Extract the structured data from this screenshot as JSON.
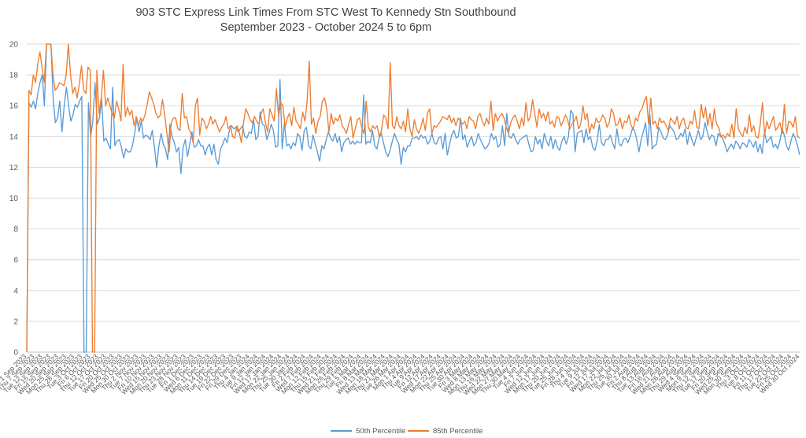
{
  "chart_data": {
    "type": "line",
    "title": "903 STC Express Link Times From STC West To Kennedy Stn Southbound",
    "subtitle": "September 2023 - October 2024 5 to 6pm",
    "xlabel": "",
    "ylabel": "",
    "ylim": [
      0,
      20
    ],
    "yticks": [
      0,
      2,
      4,
      6,
      8,
      10,
      12,
      14,
      16,
      18,
      20
    ],
    "grid": true,
    "legend": "bottom",
    "colors": {
      "p50": "#5b9bd5",
      "p85": "#ed7d31",
      "grid": "#d9d9d9",
      "axis": "#bfbfbf"
    },
    "x_tick_labels": [
      "Fri 1 Sep 2023",
      "Thu 7 Sep 2023",
      "Tue 12 Sep 2023",
      "Fri 15 Sep 2023",
      "Wed 20 Sep 2023",
      "Mon 25 Sep 2023",
      "Thu 28 Sep 2023",
      "Tue 3 Oct 2023",
      "Fri 6 Oct 2023",
      "Thu 12 Oct 2023",
      "Tue 17 Oct 2023",
      "Fri 20 Oct 2023",
      "Wed 25 Oct 2023",
      "Mon 30 Oct 2023",
      "Thu 2 Nov 2023",
      "Tue 7 Nov 2023",
      "Fri 10 Nov 2023",
      "Wed 15 Nov 2023",
      "Mon 20 Nov 2023",
      "Thu 23 Nov 2023",
      "Tue 28 Nov 2023",
      "Fri 1 Dec 2023",
      "Wed 6 Dec 2023",
      "Mon 11 Dec 2023",
      "Thu 14 Dec 2023",
      "Tue 19 Dec 2023",
      "Fri 22 Dec 2023",
      "Fri 29 Dec 2023",
      "Thu 4 Jan 2024",
      "Tue 9 Jan 2024",
      "Fri 12 Jan 2024",
      "Wed 17 Jan 2024",
      "Mon 22 Jan 2024",
      "Thu 25 Jan 2024",
      "Tue 30 Jan 2024",
      "Fri 2 Feb 2024",
      "Wed 7 Feb 2024",
      "Mon 12 Feb 2024",
      "Thu 15 Feb 2024",
      "Wed 21 Feb 2024",
      "Mon 26 Feb 2024",
      "Thu 29 Feb 2024",
      "Tue 5 Mar 2024",
      "Fri 8 Mar 2024",
      "Wed 13 Mar 2024",
      "Mon 18 Mar 2024",
      "Thu 21 Mar 2024",
      "Tue 26 Mar 2024",
      "Mon 1 Apr 2024",
      "Thu 4 Apr 2024",
      "Tue 9 Apr 2024",
      "Fri 12 Apr 2024",
      "Wed 17 Apr 2024",
      "Mon 22 Apr 2024",
      "Thu 25 Apr 2024",
      "Tue 30 Apr 2024",
      "Fri 3 May 2024",
      "Wed 8 May 2024",
      "Mon 13 May 2024",
      "Thu 16 May 2024",
      "Wed 22 May 2024",
      "Mon 27 May 2024",
      "Thu 30 May 2024",
      "Tue 4 Jun 2024",
      "Fri 7 Jun 2024",
      "Wed 12 Jun 2024",
      "Mon 17 Jun 2024",
      "Thu 20 Jun 2024",
      "Tue 25 Jun 2024",
      "Fri 28 Jun 2024",
      "Thu 4 Jul 2024",
      "Tue 9 Jul 2024",
      "Fri 12 Jul 2024",
      "Wed 17 Jul 2024",
      "Mon 22 Jul 2024",
      "Thu 25 Jul 2024",
      "Tue 30 Jul 2024",
      "Fri 2 Aug 2024",
      "Thu 8 Aug 2024",
      "Tue 13 Aug 2024",
      "Fri 16 Aug 2024",
      "Wed 21 Aug 2024",
      "Mon 26 Aug 2024",
      "Thu 29 Aug 2024",
      "Wed 4 Sep 2024",
      "Mon 9 Sep 2024",
      "Thu 12 Sep 2024",
      "Tue 17 Sep 2024",
      "Fri 20 Sep 2024",
      "Wed 25 Sep 2024",
      "Mon 30 Sep 2024",
      "Thu 3 Oct 2024",
      "Tue 8 Oct 2024",
      "Fri 11 Oct 2024",
      "Thu 17 Oct 2024",
      "Tue 22 Oct 2024",
      "Fri 25 Oct 2024",
      "Wed 30 Oct 2024"
    ],
    "series": [
      {
        "name": "50th Percentile",
        "values": [
          0,
          16.2,
          15.9,
          16.3,
          15.8,
          16.8,
          17.5,
          18.0,
          16.0,
          20,
          20,
          20,
          16.4,
          14.9,
          15.2,
          16.3,
          14.3,
          16.0,
          17.2,
          16.0,
          15.0,
          15.4,
          16.1,
          15.9,
          16.3,
          16.6,
          0,
          0,
          16.2,
          14.0,
          15.0,
          17.5,
          14.8,
          15.2,
          16.4,
          13.7,
          13.9,
          13.5,
          13.2,
          17.2,
          13.4,
          13.7,
          13.8,
          13.3,
          12.6,
          13.2,
          13.0,
          13.0,
          13.4,
          14.2,
          15.2,
          14.3,
          15.0,
          13.9,
          14.1,
          14.0,
          13.8,
          14.4,
          13.3,
          12.0,
          13.4,
          14.2,
          13.5,
          13.2,
          12.5,
          14.8,
          14.0,
          13.6,
          13.0,
          13.3,
          11.6,
          13.3,
          13.8,
          12.7,
          13.5,
          14.3,
          13.3,
          13.4,
          13.8,
          13.4,
          13.4,
          12.8,
          13.3,
          13.5,
          12.8,
          13.5,
          12.5,
          12.2,
          13.2,
          13.5,
          13.9,
          13.6,
          14.4,
          14.7,
          14.5,
          14.6,
          14.3,
          14.5,
          14.7,
          14.0,
          13.9,
          14.3,
          14.2,
          15.1,
          13.8,
          14.0,
          15.6,
          14.8,
          14.7,
          13.8,
          14.2,
          14.8,
          14.4,
          13.3,
          13.4,
          17.7,
          13.2,
          14.9,
          13.4,
          13.5,
          13.2,
          13.6,
          13.4,
          14.2,
          14.0,
          13.1,
          14.4,
          14.6,
          13.4,
          13.2,
          14.1,
          13.5,
          13.0,
          12.4,
          13.4,
          13.2,
          13.8,
          14.3,
          13.9,
          13.7,
          14.2,
          13.6,
          14.0,
          13.0,
          13.6,
          13.8,
          13.9,
          13.5,
          13.7,
          13.5,
          13.7,
          13.6,
          13.6,
          16.7,
          13.5,
          13.7,
          13.6,
          14.4,
          13.4,
          13.2,
          13.9,
          14.2,
          13.6,
          13.0,
          12.7,
          13.1,
          13.7,
          14.2,
          13.8,
          13.5,
          12.2,
          13.3,
          13.0,
          13.4,
          13.4,
          13.9,
          13.9,
          14.0,
          13.8,
          14.1,
          13.9,
          14.0,
          13.5,
          13.7,
          14.2,
          13.6,
          13.5,
          13.9,
          14.0,
          13.2,
          14.2,
          12.8,
          13.5,
          14.1,
          14.4,
          13.9,
          14.0,
          15.2,
          13.8,
          14.1,
          13.3,
          13.7,
          14.0,
          13.4,
          13.6,
          14.2,
          13.8,
          13.5,
          13.2,
          13.3,
          13.6,
          14.2,
          13.8,
          14.0,
          13.3,
          13.5,
          14.7,
          13.4,
          15.5,
          14.0,
          13.9,
          14.2,
          13.8,
          13.5,
          13.8,
          13.9,
          14.0,
          14.1,
          13.5,
          13.0,
          13.1,
          14.0,
          13.5,
          13.8,
          13.2,
          14.2,
          13.7,
          13.4,
          14.0,
          13.2,
          13.8,
          13.3,
          13.1,
          13.7,
          14.0,
          13.5,
          14.0,
          15.7,
          15.5,
          13.0,
          14.2,
          14.3,
          14.4,
          13.6,
          14.5,
          13.8,
          14.0,
          13.3,
          13.1,
          13.7,
          14.8,
          13.6,
          13.4,
          13.8,
          13.8,
          14.1,
          13.6,
          13.2,
          14.5,
          13.5,
          13.4,
          13.8,
          13.9,
          13.6,
          14.0,
          14.5,
          14.4,
          13.8,
          13.0,
          13.8,
          14.3,
          14.9,
          13.4,
          15.4,
          13.2,
          13.4,
          13.5,
          14.6,
          14.3,
          13.9,
          13.8,
          14.1,
          14.7,
          14.5,
          14.3,
          13.8,
          13.9,
          14.2,
          14.0,
          14.5,
          13.5,
          14.3,
          13.8,
          13.4,
          13.9,
          14.4,
          13.8,
          14.0,
          14.9,
          14.3,
          13.8,
          14.1,
          14.0,
          13.4,
          14.2,
          14.0,
          13.9,
          13.5,
          13.0,
          13.3,
          13.5,
          13.2,
          13.7,
          13.5,
          13.2,
          13.6,
          13.5,
          13.3,
          13.8,
          13.6,
          13.3,
          13.7,
          13.0,
          13.5,
          12.9,
          14.3,
          13.6,
          13.8,
          14.0,
          13.3,
          13.5,
          13.2,
          13.7,
          14.5,
          14.1,
          13.4,
          13.1,
          13.7,
          14.2,
          13.9,
          13.4,
          12.8
        ]
      },
      {
        "name": "85th Percentile",
        "values": [
          0,
          17.0,
          16.7,
          18.0,
          17.5,
          18.7,
          19.5,
          18.5,
          17.5,
          20,
          20,
          20,
          18.0,
          17.0,
          17.2,
          17.5,
          17.4,
          17.3,
          18.0,
          20.0,
          18.0,
          16.8,
          17.2,
          16.5,
          17.4,
          18.6,
          17.0,
          16.8,
          18.5,
          18.3,
          0,
          0,
          18.3,
          15.5,
          16.5,
          18.3,
          16.0,
          16.5,
          16.0,
          15.5,
          15.2,
          16.3,
          15.8,
          15.0,
          18.7,
          15.3,
          15.9,
          15.4,
          15.7,
          14.7,
          15.3,
          14.7,
          15.2,
          15.0,
          15.4,
          16.1,
          16.9,
          16.5,
          16.1,
          15.5,
          15.2,
          15.4,
          16.4,
          15.4,
          14.2,
          13.0,
          14.9,
          15.2,
          15.2,
          14.5,
          14.4,
          16.8,
          15.2,
          15.3,
          14.5,
          14.2,
          13.6,
          16.0,
          16.5,
          14.1,
          15.2,
          15.0,
          14.5,
          14.8,
          15.3,
          14.8,
          15.1,
          14.7,
          14.3,
          14.6,
          14.8,
          15.3,
          14.5,
          14.7,
          14.0,
          13.9,
          14.7,
          14.3,
          13.6,
          14.9,
          15.8,
          15.5,
          15.1,
          14.9,
          15.3,
          15.0,
          14.8,
          15.5,
          15.8,
          14.9,
          14.3,
          15.8,
          15.4,
          15.0,
          17.1,
          15.3,
          16.2,
          16.0,
          14.6,
          15.2,
          15.5,
          14.7,
          15.9,
          15.0,
          14.8,
          14.5,
          15.6,
          15.0,
          16.2,
          18.9,
          14.8,
          15.2,
          14.2,
          15.0,
          15.3,
          16.3,
          16.5,
          15.8,
          14.3,
          15.5,
          14.8,
          15.2,
          15.0,
          15.4,
          14.7,
          14.5,
          14.2,
          14.8,
          15.3,
          13.9,
          14.5,
          15.1,
          15.2,
          14.6,
          14.2,
          16.3,
          14.6,
          14.3,
          14.7,
          14.5,
          14.7,
          14.0,
          14.4,
          15.4,
          15.2,
          14.5,
          18.8,
          14.7,
          14.5,
          15.3,
          14.7,
          14.5,
          15.0,
          14.3,
          15.8,
          14.5,
          14.0,
          15.1,
          14.5,
          14.2,
          14.6,
          15.2,
          14.4,
          15.5,
          15.8,
          14.2,
          14.7,
          14.6,
          14.8,
          15.0,
          15.3,
          15.2,
          15.1,
          15.4,
          14.9,
          15.2,
          14.7,
          15.2,
          15.0,
          14.8,
          15.0,
          14.5,
          15.3,
          15.1,
          15.0,
          14.5,
          15.3,
          15.5,
          15.0,
          14.7,
          15.2,
          14.8,
          16.3,
          14.4,
          15.5,
          15.0,
          15.3,
          15.5,
          15.2,
          14.6,
          14.2,
          14.9,
          15.2,
          15.4,
          15.0,
          14.5,
          15.2,
          14.7,
          16.2,
          15.0,
          15.3,
          16.4,
          15.5,
          14.6,
          15.8,
          15.2,
          15.5,
          15.0,
          15.6,
          14.8,
          15.0,
          14.6,
          15.3,
          15.2,
          14.7,
          15.0,
          15.4,
          15.1,
          14.5,
          14.8,
          15.0,
          15.3,
          14.5,
          14.8,
          16.0,
          15.1,
          15.5,
          14.2,
          14.8,
          14.5,
          15.2,
          14.9,
          15.0,
          15.4,
          15.2,
          14.6,
          14.9,
          15.8,
          15.5,
          14.7,
          14.8,
          15.2,
          14.5,
          15.0,
          14.9,
          15.4,
          14.7,
          14.5,
          15.2,
          15.0,
          15.6,
          15.8,
          16.3,
          16.6,
          14.8,
          16.5,
          14.8,
          15.0,
          14.5,
          15.2,
          14.9,
          15.0,
          14.7,
          14.4,
          15.2,
          15.0,
          14.8,
          15.3,
          14.5,
          15.0,
          15.2,
          14.6,
          14.5,
          15.0,
          14.8,
          15.7,
          14.6,
          14.5,
          16.1,
          15.2,
          15.9,
          14.7,
          15.5,
          14.5,
          15.8,
          14.8,
          14.6,
          14.0,
          14.1,
          13.9,
          14.2,
          14.0,
          14.8,
          13.9,
          15.8,
          14.5,
          14.2,
          14.0,
          14.6,
          14.2,
          15.4,
          14.3,
          14.7,
          14.0,
          13.9,
          14.8,
          16.2,
          14.1,
          15.0,
          14.5,
          14.9,
          15.3,
          14.4,
          14.6,
          14.9,
          14.2,
          16.1,
          14.2,
          15.0,
          14.9,
          14.6,
          15.3,
          14.0,
          13.9
        ]
      }
    ]
  }
}
